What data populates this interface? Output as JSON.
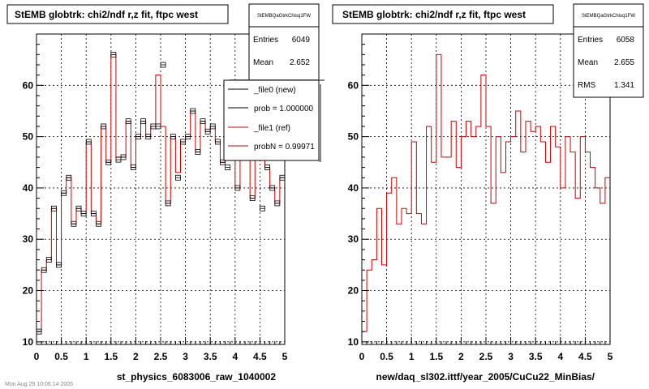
{
  "footer": "Mon Aug 29 10:06:14 2005",
  "colors": {
    "ref": "#cc0000",
    "new": "#000000",
    "grid": "#000000"
  },
  "chart_data": [
    {
      "type": "histogram",
      "title": "StEMB globtrk: chi2/ndf r,z fit, ftpc west",
      "xlabel": "st_physics_6083006_raw_1040002",
      "xlim": [
        0,
        5
      ],
      "ylim": [
        9.5,
        70
      ],
      "xticks": [
        "0",
        "0.5",
        "1",
        "1.5",
        "2",
        "2.5",
        "3",
        "3.5",
        "4",
        "4.5",
        "5"
      ],
      "yticks": [
        "10",
        "20",
        "30",
        "40",
        "50",
        "60"
      ],
      "grid": true,
      "bin_width": 0.1,
      "stats": {
        "name": "StEMBQaGtrkChisq1FW",
        "rows": [
          {
            "label": "Entries",
            "value": "6049"
          },
          {
            "label": "Mean",
            "value": "2.652"
          }
        ]
      },
      "legend": [
        {
          "label": "_file0 (new)",
          "color": "#000000"
        },
        {
          "label": "prob = 1.000000",
          "color": "#000000"
        },
        {
          "label": "_file1 (ref)",
          "color": "#cc0000"
        },
        {
          "label": "probN = 0.99971",
          "color": "#cc0000"
        }
      ],
      "series": [
        {
          "name": "_file1 (ref)",
          "style": "step",
          "color": "#cc0000",
          "values": [
            12,
            24,
            26,
            36,
            25,
            39,
            42,
            33,
            36,
            35,
            49,
            35,
            33,
            52,
            45,
            66,
            46,
            46,
            53,
            44,
            50,
            53,
            50,
            52,
            62,
            52,
            37,
            50,
            43,
            49,
            50,
            55,
            47,
            53,
            51,
            52,
            49,
            45,
            52,
            48,
            40,
            50,
            47,
            38,
            50,
            47,
            44,
            40,
            37,
            42
          ]
        },
        {
          "name": "_file0 (new)",
          "style": "markers",
          "color": "#000000",
          "values": [
            12,
            24,
            26,
            36,
            25,
            39,
            42,
            33,
            36,
            35,
            49,
            35,
            33,
            52,
            45,
            66,
            45.5,
            46,
            53,
            44,
            50,
            53,
            50,
            52,
            52,
            64,
            37,
            50,
            42,
            49,
            50,
            55,
            47,
            53,
            51,
            52,
            49,
            45,
            44,
            48,
            40,
            50,
            47,
            38,
            50,
            36,
            44,
            40,
            37,
            42
          ]
        }
      ]
    },
    {
      "type": "histogram",
      "title": "StEMB globtrk: chi2/ndf r,z fit, ftpc west",
      "xlabel": "new/daq_sl302.ittf/year_2005/CuCu22_MinBias/",
      "xlim": [
        0,
        5
      ],
      "ylim": [
        9.5,
        70
      ],
      "xticks": [
        "0",
        "0.5",
        "1",
        "1.5",
        "2",
        "2.5",
        "3",
        "3.5",
        "4",
        "4.5",
        "5"
      ],
      "yticks": [
        "10",
        "20",
        "30",
        "40",
        "50",
        "60"
      ],
      "grid": true,
      "bin_width": 0.1,
      "stats": {
        "name": "StEMBQaGtrkChisq1FW",
        "rows": [
          {
            "label": "Entries",
            "value": "6058"
          },
          {
            "label": "Mean",
            "value": "2.655"
          },
          {
            "label": "RMS",
            "value": "1.341"
          }
        ]
      },
      "legend": [],
      "series": [
        {
          "name": "",
          "style": "step",
          "color": "#cc0000",
          "values": [
            12,
            24,
            26,
            36,
            25,
            39,
            42,
            33,
            36,
            35,
            49,
            35,
            33,
            52,
            45,
            66,
            46,
            46,
            53,
            44,
            50,
            53,
            50,
            52,
            62,
            52,
            37,
            50,
            43,
            49,
            50,
            55,
            47,
            53,
            51,
            52,
            49,
            45,
            52,
            48,
            40,
            50,
            47,
            38,
            50,
            47,
            44,
            40,
            37,
            42
          ]
        }
      ]
    }
  ]
}
